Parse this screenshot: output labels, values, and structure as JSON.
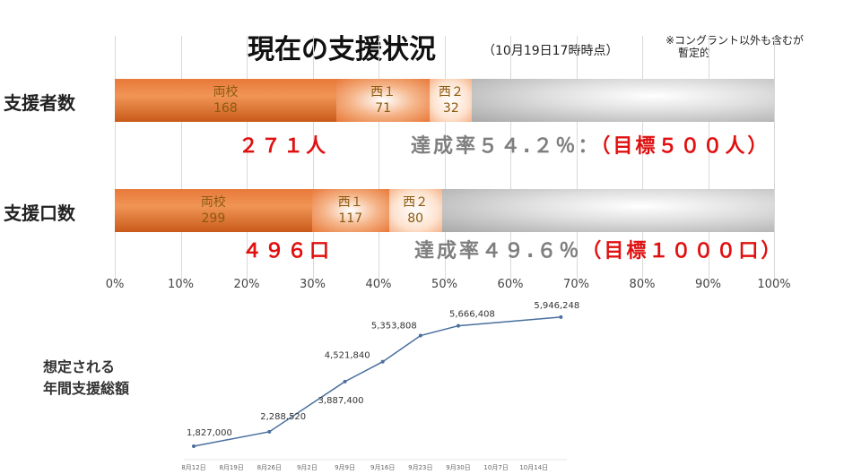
{
  "header": {
    "title": "現在の支援状況",
    "subtitle": "（10月19日17時時点）",
    "note_line1": "※コングラント以外も含むが",
    "note_line2": "暫定的"
  },
  "chart_data": [
    {
      "type": "bar",
      "stacked": true,
      "orientation": "horizontal",
      "xlim": [
        0,
        100
      ],
      "grid": true,
      "tick_labels": [
        "0%",
        "10%",
        "20%",
        "30%",
        "40%",
        "50%",
        "60%",
        "70%",
        "80%",
        "90%",
        "100%"
      ],
      "rows": [
        {
          "label": "支援者数",
          "target": 500,
          "segments": [
            {
              "name": "両校",
              "value": 168
            },
            {
              "name": "西１",
              "value": 71
            },
            {
              "name": "西２",
              "value": 32
            }
          ],
          "total_text": "２７１人",
          "rate_text": "達成率５４.２％：",
          "goal_text": "（目標５００人）",
          "rate": 54.2
        },
        {
          "label": "支援口数",
          "target": 1000,
          "segments": [
            {
              "name": "両校",
              "value": 299
            },
            {
              "name": "西１",
              "value": 117
            },
            {
              "name": "西２",
              "value": 80
            }
          ],
          "total_text": "４９６口",
          "rate_text": "達成率４９.６％",
          "goal_text": "（目標１０００口）",
          "rate": 49.6
        }
      ],
      "colors": {
        "segment": "#e8793a",
        "remainder": "#a8a8a8",
        "total": "#e01010",
        "rate": "#7f7f7f"
      }
    },
    {
      "type": "line",
      "title_line1": "想定される",
      "title_line2": "年間支援総額",
      "x_tick_labels": [
        "8月12日",
        "8月19日",
        "8月26日",
        "9月2日",
        "9月9日",
        "9月16日",
        "9月23日",
        "9月30日",
        "10月7日",
        "10月14日"
      ],
      "points": [
        {
          "x": "8月12日",
          "y": 1827000,
          "label": "1,827,000"
        },
        {
          "x": "8月26日",
          "y": 2288520,
          "label": "2,288,520"
        },
        {
          "x": "9月9日",
          "y": 3887400,
          "label": "3,887,400"
        },
        {
          "x": "9月16日",
          "y": 4521840,
          "label": "4,521,840"
        },
        {
          "x": "9月23日",
          "y": 5353808,
          "label": "5,353,808"
        },
        {
          "x": "9月30日",
          "y": 5666408,
          "label": "5,666,408"
        },
        {
          "x": "10月19日",
          "y": 5946248,
          "label": "5,946,248"
        }
      ],
      "color": "#4a6f9e"
    }
  ]
}
